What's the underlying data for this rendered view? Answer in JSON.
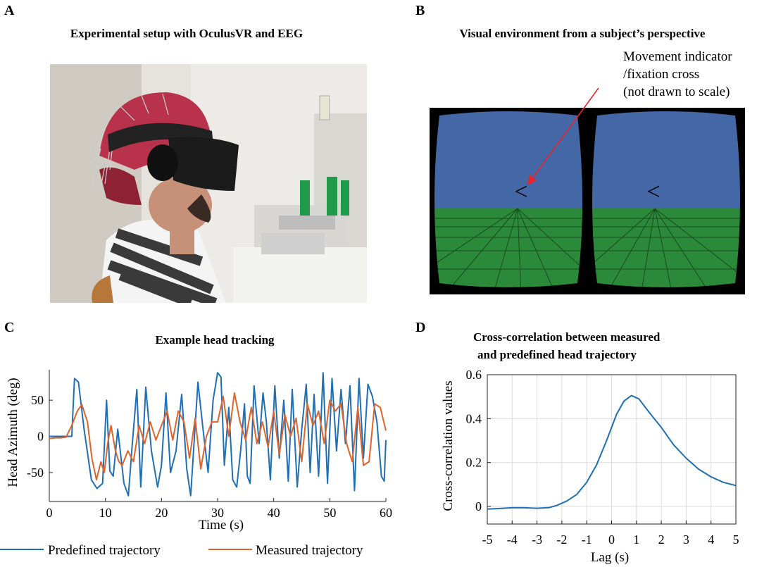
{
  "panels": {
    "a": {
      "letter": "A",
      "title": "Experimental setup with OculusVR and EEG"
    },
    "b": {
      "letter": "B",
      "title": "Visual environment from a subject’s perspective",
      "annotation": [
        "Movement indicator",
        "/fixation cross",
        "(not drawn to scale)"
      ],
      "indicator_glyph": "<",
      "colors": {
        "sky": "#4467a6",
        "ground": "#2a8a3a",
        "frame": "#000000",
        "arrow": "#e8232a"
      }
    },
    "c": {
      "letter": "C",
      "title": "Example head tracking"
    },
    "d": {
      "letter": "D",
      "title_lines": [
        "Cross-correlation between measured",
        "and predefined head trajectory"
      ]
    }
  },
  "chart_data": [
    {
      "type": "line",
      "title": "Example head tracking",
      "xlabel": "Time (s)",
      "ylabel": "Head Azimuth (deg)",
      "xlim": [
        0,
        60
      ],
      "ylim": [
        -90,
        92
      ],
      "xticks": [
        0,
        10,
        20,
        30,
        40,
        50,
        60
      ],
      "yticks": [
        -50,
        0,
        50
      ],
      "grid": false,
      "legend_position": "bottom",
      "series": [
        {
          "name": "Predefined trajectory",
          "color": "#1f6fb4",
          "x": [
            0,
            4,
            4.5,
            5.2,
            6.2,
            7.5,
            8.5,
            9.5,
            10.2,
            10.8,
            11.4,
            12.2,
            13.3,
            14.1,
            14.8,
            15.6,
            16.3,
            17.2,
            18.2,
            19.3,
            20,
            20.8,
            21.6,
            22.6,
            23.6,
            24.5,
            25.2,
            25.8,
            26.5,
            27.4,
            28.3,
            29.2,
            30,
            30.6,
            31.2,
            32,
            32.7,
            33.4,
            34.1,
            34.8,
            35.3,
            35.8,
            36.5,
            37.4,
            38.1,
            38.7,
            39.4,
            40.2,
            41,
            41.8,
            42.6,
            43.3,
            44.2,
            45,
            45.8,
            46.5,
            47.2,
            48,
            48.8,
            49.6,
            50.4,
            51.2,
            52,
            52.8,
            53.6,
            54.4,
            55.2,
            56,
            56.8,
            57.6,
            58.4,
            59.2,
            59.7,
            60
          ],
          "y": [
            0,
            0,
            80,
            75,
            10,
            -60,
            -72,
            -65,
            50,
            -48,
            -55,
            10,
            -65,
            -82,
            -10,
            65,
            -70,
            68,
            -20,
            -70,
            -40,
            60,
            -50,
            -20,
            58,
            -45,
            -82,
            -10,
            75,
            10,
            -50,
            50,
            88,
            82,
            -40,
            40,
            -60,
            -70,
            -20,
            45,
            -55,
            -65,
            70,
            -10,
            60,
            20,
            -60,
            70,
            -30,
            50,
            -62,
            65,
            -70,
            10,
            72,
            -50,
            58,
            -55,
            88,
            -65,
            80,
            -20,
            65,
            -10,
            70,
            -75,
            80,
            -30,
            72,
            55,
            20,
            -55,
            -62,
            -5
          ]
        },
        {
          "name": "Measured trajectory",
          "color": "#e0642a",
          "x": [
            0,
            1,
            2,
            3,
            4,
            5,
            5.8,
            6.8,
            7.6,
            8.4,
            9.2,
            9.8,
            10.4,
            11,
            11.8,
            12.4,
            13,
            14,
            15,
            16,
            17,
            18,
            19,
            20,
            21,
            22,
            23,
            24,
            25,
            26,
            27,
            28,
            29,
            30,
            31,
            32,
            33,
            34,
            35,
            36,
            37,
            38,
            39,
            40,
            41,
            42,
            43,
            44,
            45,
            46,
            47,
            48,
            49,
            50,
            51,
            52,
            53,
            54,
            55,
            56,
            57,
            58,
            59,
            60
          ],
          "y": [
            -3,
            -2,
            -2,
            -1,
            15,
            35,
            44,
            20,
            -30,
            -60,
            -35,
            -50,
            -10,
            15,
            -20,
            -35,
            -40,
            -20,
            -35,
            15,
            -10,
            20,
            -5,
            15,
            35,
            -5,
            35,
            20,
            -30,
            25,
            -45,
            0,
            20,
            20,
            55,
            0,
            60,
            20,
            -5,
            40,
            -10,
            20,
            -15,
            35,
            -25,
            30,
            0,
            25,
            -35,
            45,
            15,
            35,
            -10,
            50,
            35,
            45,
            -10,
            -35,
            40,
            -40,
            -35,
            45,
            40,
            8
          ]
        }
      ]
    },
    {
      "type": "line",
      "title": "Cross-correlation between measured and predefined head trajectory",
      "xlabel": "Lag (s)",
      "ylabel": "Cross-correlation values",
      "xlim": [
        -5,
        5
      ],
      "ylim": [
        -0.08,
        0.6
      ],
      "xticks": [
        -5,
        -4,
        -3,
        -2,
        -1,
        0,
        1,
        2,
        3,
        4,
        5
      ],
      "yticks": [
        0,
        0.2,
        0.4,
        0.6
      ],
      "grid": true,
      "series": [
        {
          "color": "#1f6fb4",
          "x": [
            -5,
            -4.5,
            -4,
            -3.5,
            -3,
            -2.5,
            -2.2,
            -1.8,
            -1.4,
            -1,
            -0.6,
            -0.2,
            0.2,
            0.5,
            0.8,
            1.1,
            1.5,
            2,
            2.5,
            3,
            3.5,
            4,
            4.5,
            5
          ],
          "y": [
            -0.012,
            -0.009,
            -0.006,
            -0.006,
            -0.008,
            -0.005,
            0.005,
            0.025,
            0.055,
            0.11,
            0.19,
            0.3,
            0.42,
            0.48,
            0.505,
            0.49,
            0.43,
            0.36,
            0.28,
            0.22,
            0.17,
            0.135,
            0.11,
            0.095
          ]
        }
      ]
    }
  ]
}
